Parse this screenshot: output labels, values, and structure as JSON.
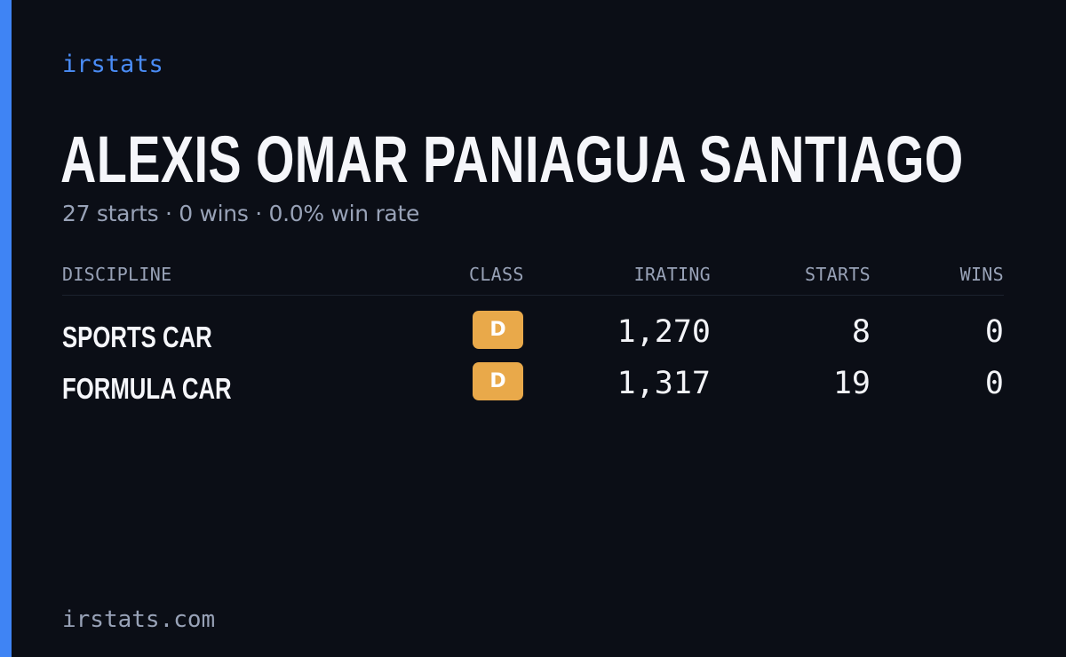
{
  "brand": "irstats",
  "driver": {
    "name": "ALEXIS OMAR PANIAGUA SANTIAGO",
    "summary": "27 starts · 0 wins · 0.0% win rate"
  },
  "table": {
    "headers": {
      "discipline": "DISCIPLINE",
      "class": "CLASS",
      "irating": "IRATING",
      "starts": "STARTS",
      "wins": "WINS"
    },
    "rows": [
      {
        "discipline": "SPORTS CAR",
        "class": "D",
        "irating": "1,270",
        "starts": "8",
        "wins": "0"
      },
      {
        "discipline": "FORMULA CAR",
        "class": "D",
        "irating": "1,317",
        "starts": "19",
        "wins": "0"
      }
    ]
  },
  "footer": "irstats.com",
  "colors": {
    "background": "#0b0e16",
    "accent": "#3f84f4",
    "class_d": "#e9a94a",
    "muted_text": "#98a2b7"
  }
}
